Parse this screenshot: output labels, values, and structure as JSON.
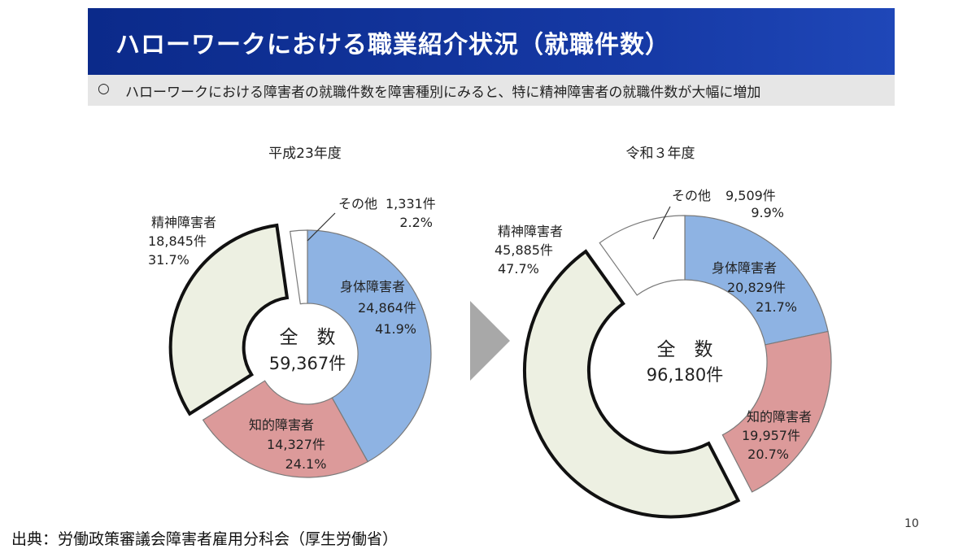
{
  "header": {
    "title": "ハローワークにおける職業紹介状況（就職件数）",
    "subtitle_bullet": "○",
    "subtitle": "ハローワークにおける障害者の就職件数を障害種別にみると、特に精神障害者の就職件数が大幅に増加"
  },
  "footer": {
    "source": "出典：労働政策審議会障害者雇用分科会（厚生労働省）",
    "page_number": "10"
  },
  "arrow_icon": "right-triangle-arrow",
  "chart_data": [
    {
      "type": "pie",
      "style": "donut",
      "title": "平成23年度",
      "center_label": "全　数",
      "center_value": "59,367件",
      "total": 59367,
      "slices": [
        {
          "key": "physical",
          "name": "身体障害者",
          "count": 24864,
          "count_label": "24,864件",
          "percent": 41.9,
          "percent_label": "41.9%",
          "color": "#8eb3e3"
        },
        {
          "key": "intellectual",
          "name": "知的障害者",
          "count": 14327,
          "count_label": "14,327件",
          "percent": 24.1,
          "percent_label": "24.1%",
          "color": "#dc9a9a"
        },
        {
          "key": "mental",
          "name": "精神障害者",
          "count": 18845,
          "count_label": "18,845件",
          "percent": 31.7,
          "percent_label": "31.7%",
          "color": "#edf0e2",
          "emphasized": true
        },
        {
          "key": "other",
          "name": "その他",
          "count": 1331,
          "count_label": "1,331件",
          "percent": 2.2,
          "percent_label": "2.2%",
          "color": "#ffffff"
        }
      ]
    },
    {
      "type": "pie",
      "style": "donut",
      "title": "令和３年度",
      "center_label": "全　数",
      "center_value": "96,180件",
      "total": 96180,
      "slices": [
        {
          "key": "physical",
          "name": "身体障害者",
          "count": 20829,
          "count_label": "20,829件",
          "percent": 21.7,
          "percent_label": "21.7%",
          "color": "#8eb3e3"
        },
        {
          "key": "intellectual",
          "name": "知的障害者",
          "count": 19957,
          "count_label": "19,957件",
          "percent": 20.7,
          "percent_label": "20.7%",
          "color": "#dc9a9a"
        },
        {
          "key": "mental",
          "name": "精神障害者",
          "count": 45885,
          "count_label": "45,885件",
          "percent": 47.7,
          "percent_label": "47.7%",
          "color": "#edf0e2",
          "emphasized": true
        },
        {
          "key": "other",
          "name": "その他",
          "count": 9509,
          "count_label": "9,509件",
          "percent": 9.9,
          "percent_label": "9.9%",
          "color": "#ffffff"
        }
      ]
    }
  ]
}
